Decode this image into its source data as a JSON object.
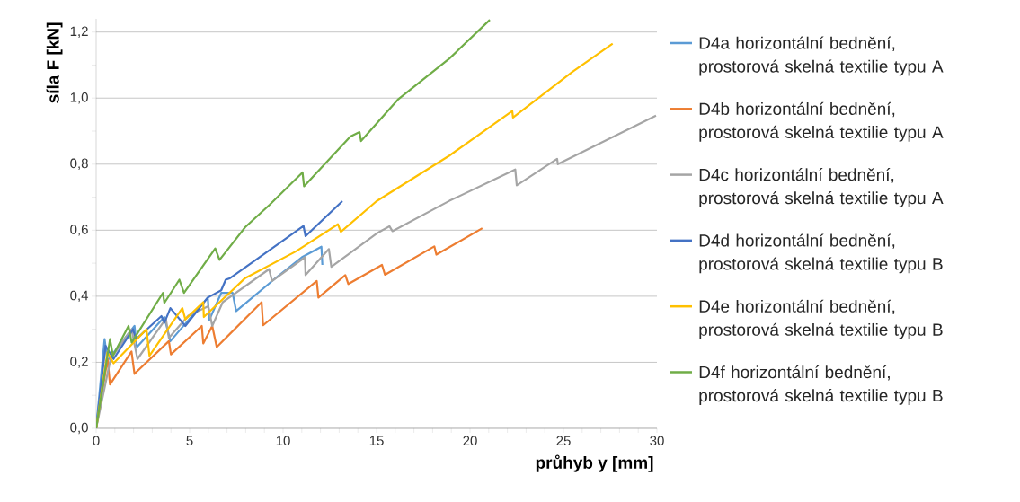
{
  "chart_data": {
    "type": "line",
    "xlabel": "průhyb y [mm]",
    "ylabel": "síla F [kN]",
    "xlim": [
      0,
      30
    ],
    "ylim": [
      0,
      1.24
    ],
    "xticks": [
      0,
      5,
      10,
      15,
      20,
      25,
      30
    ],
    "yticks": [
      {
        "value": 0,
        "label": "0,0"
      },
      {
        "value": 0.2,
        "label": "0,2"
      },
      {
        "value": 0.4,
        "label": "0,4"
      },
      {
        "value": 0.6,
        "label": "0,6"
      },
      {
        "value": 0.8,
        "label": "0,8"
      },
      {
        "value": 1.0,
        "label": "1,0"
      },
      {
        "value": 1.2,
        "label": "1,2"
      }
    ],
    "grid": "y",
    "legend": "right",
    "series": [
      {
        "name": "D4a horizontální bednění, prostorová skelná textilie typu A",
        "color": "#5b9bd5",
        "x": [
          0,
          0.45,
          0.6,
          2.05,
          2.18,
          3.65,
          3.97,
          5.97,
          6.05,
          6.69,
          7.3,
          7.49,
          9.41,
          11.0,
          12.05,
          12.1
        ],
        "values": [
          0,
          0.27,
          0.205,
          0.31,
          0.246,
          0.337,
          0.264,
          0.396,
          0.328,
          0.41,
          0.41,
          0.355,
          0.446,
          0.518,
          0.55,
          0.495
        ]
      },
      {
        "name": "D4b horizontální bednění, prostorová skelná textilie typu A",
        "color": "#ed7d31",
        "x": [
          0,
          0.61,
          0.74,
          1.89,
          2.05,
          3.89,
          4.0,
          5.65,
          5.73,
          6.21,
          6.45,
          8.85,
          8.93,
          11.8,
          11.89,
          13.33,
          13.49,
          15.29,
          15.45,
          18.09,
          18.2,
          20.66
        ],
        "values": [
          0,
          0.21,
          0.133,
          0.233,
          0.165,
          0.264,
          0.224,
          0.31,
          0.257,
          0.31,
          0.246,
          0.382,
          0.312,
          0.446,
          0.396,
          0.464,
          0.437,
          0.495,
          0.465,
          0.551,
          0.526,
          0.606
        ]
      },
      {
        "name": "D4c horizontální bednění, prostorová skelná textilie typu A",
        "color": "#a5a5a5",
        "x": [
          0,
          0.77,
          1.89,
          2.21,
          3.73,
          3.89,
          4.93,
          6.0,
          6.21,
          6.77,
          9.25,
          9.41,
          11.17,
          11.2,
          12.45,
          12.58,
          15.0,
          15.69,
          15.85,
          18.9,
          22.42,
          22.5,
          24.66,
          24.7,
          29.95
        ],
        "values": [
          0,
          0.21,
          0.3,
          0.21,
          0.332,
          0.274,
          0.341,
          0.37,
          0.31,
          0.382,
          0.482,
          0.446,
          0.518,
          0.464,
          0.543,
          0.489,
          0.59,
          0.612,
          0.597,
          0.689,
          0.784,
          0.736,
          0.816,
          0.8,
          0.947
        ]
      },
      {
        "name": "D4d horizontální bednění, prostorová skelná textilie typu B",
        "color": "#4472c4",
        "x": [
          0,
          0.5,
          0.93,
          1.97,
          2.13,
          3.49,
          3.65,
          3.97,
          4.77,
          5.97,
          6.69,
          6.93,
          7.17,
          10.2,
          11.09,
          11.2,
          13.17
        ],
        "values": [
          0,
          0.25,
          0.21,
          0.3,
          0.27,
          0.34,
          0.32,
          0.364,
          0.31,
          0.396,
          0.418,
          0.45,
          0.455,
          0.577,
          0.613,
          0.582,
          0.688
        ]
      },
      {
        "name": "D4e horizontální bednění, prostorová skelná textilie typu B",
        "color": "#ffc000",
        "x": [
          0,
          0.6,
          0.93,
          2.69,
          2.85,
          4.61,
          4.77,
          5.73,
          5.76,
          7.97,
          10.69,
          12.93,
          13.09,
          15.0,
          18.9,
          22.26,
          22.3,
          25.47,
          27.63
        ],
        "values": [
          0,
          0.23,
          0.197,
          0.3,
          0.22,
          0.364,
          0.33,
          0.382,
          0.337,
          0.455,
          0.536,
          0.618,
          0.595,
          0.688,
          0.826,
          0.961,
          0.941,
          1.079,
          1.165
        ]
      },
      {
        "name": "D4f horizontální bednění, prostorová skelná textilie typu B",
        "color": "#70ad47",
        "x": [
          0,
          0.74,
          0.9,
          1.73,
          1.9,
          3.57,
          3.65,
          4.45,
          4.7,
          6.37,
          6.6,
          7.97,
          9.28,
          11.04,
          11.12,
          13.6,
          14.09,
          14.17,
          16.17,
          18.9,
          21.06
        ],
        "values": [
          0,
          0.27,
          0.22,
          0.31,
          0.26,
          0.41,
          0.38,
          0.45,
          0.41,
          0.545,
          0.51,
          0.609,
          0.677,
          0.775,
          0.733,
          0.884,
          0.897,
          0.87,
          0.997,
          1.12,
          1.237
        ]
      }
    ]
  }
}
